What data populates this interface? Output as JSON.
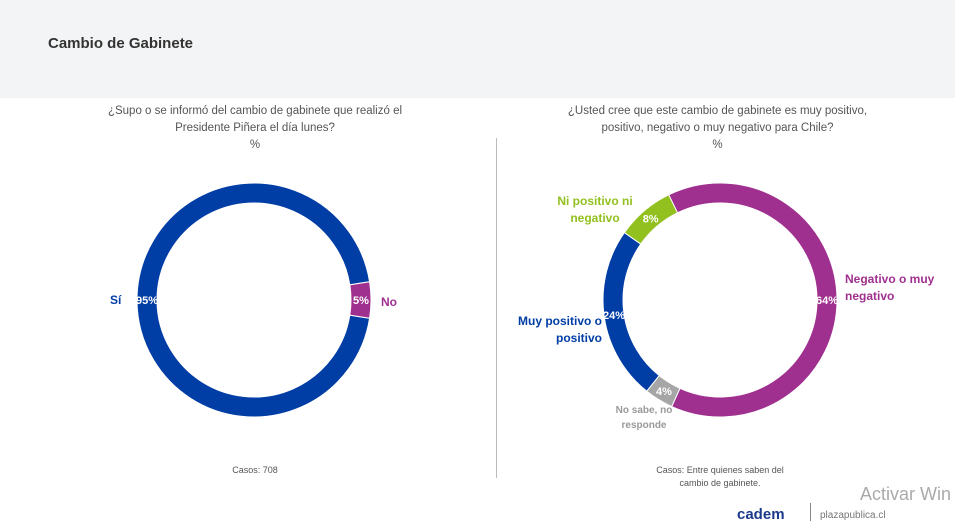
{
  "header": {
    "title": "Cambio de Gabinete"
  },
  "chart_data": [
    {
      "type": "pie",
      "donut": true,
      "title": "¿Supo o se informó del cambio de gabinete que realizó el Presidente Piñera el día lunes?",
      "unit": "%",
      "slices": [
        {
          "label": "Sí",
          "value": 95,
          "color": "#003da5"
        },
        {
          "label": "No",
          "value": 5,
          "color": "#a0308f"
        }
      ],
      "note": "Casos: 708"
    },
    {
      "type": "pie",
      "donut": true,
      "title": "¿Usted cree que este cambio de gabinete es muy positivo, positivo, negativo o muy negativo para Chile?",
      "unit": "%",
      "slices": [
        {
          "label": "Negativo o muy negativo",
          "value": 64,
          "color": "#a0308f"
        },
        {
          "label": "No sabe, no responde",
          "value": 4,
          "color": "#a6a6a6"
        },
        {
          "label": "Muy positivo o positivo",
          "value": 24,
          "color": "#003da5"
        },
        {
          "label": "Ni positivo ni negativo",
          "value": 8,
          "color": "#92c01f"
        }
      ],
      "note": "Casos: Entre quienes saben del cambio de gabinete."
    }
  ],
  "footer": {
    "logo": "cadem",
    "site": "plazapublica.cl",
    "watermark": "Activar Win"
  }
}
